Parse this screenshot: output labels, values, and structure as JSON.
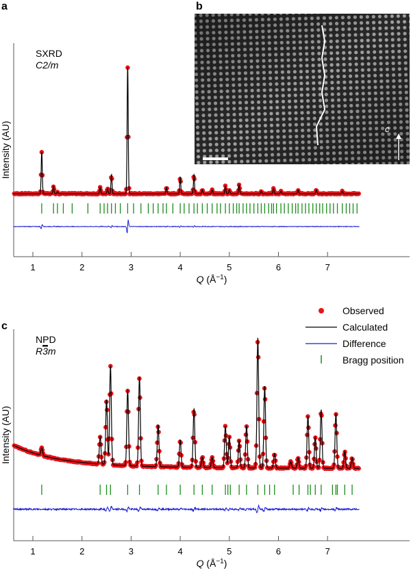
{
  "colors": {
    "observed": "#e8141a",
    "calculated": "#000000",
    "difference": "#1a1ad6",
    "bragg": "#1a8c1a",
    "axis": "#555555"
  },
  "panel_b": {
    "label": "b",
    "direction_label": "c"
  },
  "chart_data": [
    {
      "panel": "a",
      "type": "line",
      "title": "SXRD",
      "subtitle": "C2/m",
      "xlabel": "Q (Å⁻¹)",
      "xlabel_var": "Q",
      "xlabel_unit": " (Å",
      "xlabel_sup": "−1",
      "xlabel_close": ")",
      "ylabel": "Intensity (AU)",
      "xlim": [
        0.6,
        7.65
      ],
      "ylim": [
        -30,
        160
      ],
      "xticks": [
        "1",
        "2",
        "3",
        "4",
        "5",
        "6",
        "7"
      ],
      "grid": false,
      "background": 0,
      "peak_width": 0.011,
      "peaks": [
        [
          1.18,
          33
        ],
        [
          1.42,
          6
        ],
        [
          1.5,
          1.5
        ],
        [
          2.37,
          5
        ],
        [
          2.52,
          4
        ],
        [
          2.6,
          15
        ],
        [
          2.93,
          100
        ],
        [
          3.72,
          5
        ],
        [
          4.0,
          13
        ],
        [
          4.28,
          15
        ],
        [
          4.45,
          3
        ],
        [
          4.65,
          3
        ],
        [
          4.92,
          6
        ],
        [
          5.0,
          3
        ],
        [
          5.2,
          7
        ],
        [
          5.65,
          2
        ],
        [
          5.9,
          4
        ],
        [
          6.05,
          2
        ],
        [
          6.4,
          3
        ],
        [
          6.77,
          3
        ],
        [
          7.3,
          2
        ]
      ],
      "bragg": [
        1.18,
        1.42,
        1.5,
        1.62,
        1.8,
        2.12,
        2.37,
        2.45,
        2.52,
        2.6,
        2.68,
        2.78,
        2.93,
        3.05,
        3.2,
        3.35,
        3.45,
        3.55,
        3.65,
        3.72,
        3.85,
        4.0,
        4.08,
        4.18,
        4.28,
        4.35,
        4.45,
        4.55,
        4.65,
        4.75,
        4.82,
        4.92,
        5.0,
        5.08,
        5.15,
        5.2,
        5.28,
        5.35,
        5.42,
        5.5,
        5.58,
        5.65,
        5.72,
        5.8,
        5.86,
        5.9,
        5.96,
        6.05,
        6.12,
        6.2,
        6.28,
        6.35,
        6.4,
        6.48,
        6.55,
        6.62,
        6.7,
        6.77,
        6.84,
        6.9,
        6.98,
        7.05,
        7.12,
        7.2,
        7.3,
        7.38,
        7.45,
        7.52,
        7.6
      ]
    },
    {
      "panel": "c",
      "type": "line",
      "title": "NPD",
      "subtitle_pre": "R",
      "subtitle_bar": "3",
      "subtitle_post": "m",
      "xlabel_var": "Q",
      "xlabel_unit": " (Å",
      "xlabel_sup": "−1",
      "xlabel_close": ")",
      "ylabel": "Intensity (AU)",
      "xlim": [
        0.6,
        7.65
      ],
      "ylim": [
        -30,
        160
      ],
      "xticks": [
        "1",
        "2",
        "3",
        "4",
        "5",
        "6",
        "7"
      ],
      "grid": false,
      "background": "decaying",
      "peak_width": 0.017,
      "peaks": [
        [
          1.18,
          6
        ],
        [
          2.37,
          21
        ],
        [
          2.5,
          50
        ],
        [
          2.58,
          76
        ],
        [
          2.93,
          58
        ],
        [
          3.17,
          68
        ],
        [
          3.55,
          32
        ],
        [
          4.0,
          21
        ],
        [
          4.28,
          45
        ],
        [
          4.45,
          8
        ],
        [
          4.65,
          8
        ],
        [
          4.92,
          32
        ],
        [
          5.0,
          24
        ],
        [
          5.2,
          21
        ],
        [
          5.35,
          32
        ],
        [
          5.58,
          100
        ],
        [
          5.72,
          63
        ],
        [
          5.92,
          11
        ],
        [
          6.25,
          5
        ],
        [
          6.4,
          8
        ],
        [
          6.6,
          40
        ],
        [
          6.75,
          24
        ],
        [
          6.87,
          45
        ],
        [
          7.17,
          42
        ],
        [
          7.35,
          13
        ],
        [
          7.5,
          8
        ]
      ],
      "bragg": [
        1.18,
        2.37,
        2.5,
        2.58,
        2.93,
        3.17,
        3.55,
        3.72,
        4.0,
        4.28,
        4.45,
        4.65,
        4.92,
        4.97,
        5.02,
        5.2,
        5.35,
        5.58,
        5.72,
        5.82,
        5.92,
        6.3,
        6.42,
        6.6,
        6.65,
        6.75,
        6.87,
        7.1,
        7.17,
        7.2,
        7.35,
        7.5
      ],
      "legend": {
        "position": "top-right",
        "entries": [
          "Observed",
          "Calculated",
          "Difference",
          "Bragg position"
        ]
      }
    }
  ],
  "labels": {
    "a": "a",
    "c": "c"
  }
}
